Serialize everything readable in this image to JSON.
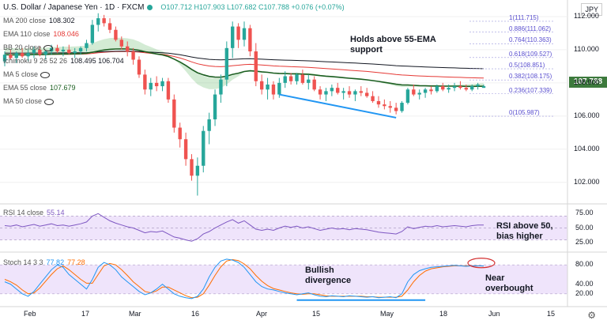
{
  "header": {
    "symbol": "U.S. Dollar / Japanese Yen · 1D · FXCM",
    "ohlc": "O107.712  H107.903  L107.682  C107.788  +0.076 (+0.07%)",
    "currency": "JPY"
  },
  "indicators": [
    {
      "label": "MA 200 close",
      "value": "108.302",
      "color": "#131722"
    },
    {
      "label": "EMA 110 close",
      "value": "108.046",
      "color": "#e53935"
    },
    {
      "label": "BB 20 close",
      "value": "",
      "color": "#555555"
    },
    {
      "label": "Ichimoku 9 26 52 26",
      "value": "108.495  106.704",
      "color": "#131722"
    },
    {
      "label": "MA 5 close",
      "value": "",
      "color": "#555555"
    },
    {
      "label": "EMA 55 close",
      "value": "107.679",
      "color": "#1b5e20"
    },
    {
      "label": "MA 50 close",
      "value": "",
      "color": "#888888"
    }
  ],
  "annotations": {
    "main": "Holds above 55-EMA support",
    "rsi": "RSI above 50, bias higher",
    "divergence": "Bullish divergence",
    "overbought": "Near overbought"
  },
  "rsi_label": "RSI 14 close",
  "rsi_value": "55.14",
  "stoch_label": "Stoch 14 3 3",
  "stoch_k": "77.82",
  "stoch_d": "77.28",
  "price_tag": "107.788",
  "fib_levels": [
    {
      "label": "1(111.715)",
      "value": 111.715
    },
    {
      "label": "0.886(111.062)",
      "value": 111.062
    },
    {
      "label": "0.764(110.363)",
      "value": 110.363
    },
    {
      "label": "0.618(109.527)",
      "value": 109.527
    },
    {
      "label": "0.5(108.851)",
      "value": 108.851
    },
    {
      "label": "0.382(108.175)",
      "value": 108.175
    },
    {
      "label": "0.236(107.339)",
      "value": 107.339
    },
    {
      "label": "0(105.987)",
      "value": 105.987
    }
  ],
  "colors": {
    "up": "#26a69a",
    "down": "#ef5350",
    "accent": "#2196f3",
    "rsi": "#7e57c2",
    "stoch_k": "#2196f3",
    "stoch_d": "#ff6d00"
  },
  "chart_data": {
    "type": "candlestick",
    "price_ticks": [
      "112.000",
      "110.000",
      "108.000",
      "106.000",
      "104.000",
      "102.000"
    ],
    "price_range": [
      100.7,
      113.0
    ],
    "x_ticks": [
      "Feb",
      "17",
      "Mar",
      "16",
      "Apr",
      "15",
      "May",
      "18",
      "Jun",
      "15"
    ],
    "rsi_ticks": [
      "75.00",
      "50.00",
      "25.00"
    ],
    "rsi_range": [
      15,
      85
    ],
    "stoch_ticks": [
      "80.00",
      "40.00",
      "20.00"
    ],
    "stoch_range": [
      0,
      100
    ],
    "candles": [
      [
        109.3,
        109.9,
        109.0,
        109.7
      ],
      [
        109.7,
        110.0,
        109.4,
        109.5
      ],
      [
        109.5,
        109.9,
        109.2,
        109.8
      ],
      [
        109.8,
        110.1,
        109.5,
        109.6
      ],
      [
        109.6,
        110.0,
        109.3,
        109.8
      ],
      [
        109.8,
        110.2,
        109.5,
        110.0
      ],
      [
        110.0,
        110.2,
        109.6,
        109.7
      ],
      [
        109.7,
        110.0,
        109.4,
        109.9
      ],
      [
        109.9,
        110.3,
        109.7,
        110.1
      ],
      [
        110.1,
        110.3,
        109.8,
        109.9
      ],
      [
        109.9,
        110.2,
        109.6,
        110.0
      ],
      [
        110.0,
        110.3,
        109.7,
        109.8
      ],
      [
        109.8,
        110.1,
        109.5,
        109.9
      ],
      [
        109.9,
        110.2,
        109.7,
        110.1
      ],
      [
        110.1,
        110.6,
        109.9,
        110.4
      ],
      [
        110.4,
        111.8,
        110.3,
        111.5
      ],
      [
        111.5,
        112.2,
        111.1,
        111.9
      ],
      [
        111.9,
        112.1,
        111.4,
        111.6
      ],
      [
        111.6,
        111.9,
        111.0,
        111.2
      ],
      [
        111.2,
        111.4,
        110.5,
        110.6
      ],
      [
        110.6,
        110.8,
        110.0,
        110.2
      ],
      [
        110.2,
        110.5,
        109.6,
        109.9
      ],
      [
        109.9,
        110.1,
        109.1,
        109.4
      ],
      [
        109.4,
        109.6,
        108.3,
        108.5
      ],
      [
        108.5,
        108.8,
        107.3,
        107.6
      ],
      [
        107.6,
        108.3,
        107.2,
        108.0
      ],
      [
        108.0,
        108.4,
        107.5,
        107.8
      ],
      [
        107.8,
        108.3,
        107.5,
        108.1
      ],
      [
        108.1,
        108.3,
        106.8,
        107.0
      ],
      [
        107.0,
        107.3,
        105.0,
        105.3
      ],
      [
        105.3,
        105.6,
        104.1,
        104.6
      ],
      [
        104.6,
        105.0,
        103.0,
        103.4
      ],
      [
        103.4,
        103.7,
        102.1,
        102.4
      ],
      [
        102.4,
        103.5,
        101.2,
        103.0
      ],
      [
        103.0,
        105.4,
        102.6,
        105.1
      ],
      [
        105.1,
        106.2,
        104.3,
        105.8
      ],
      [
        105.8,
        107.6,
        105.4,
        107.3
      ],
      [
        107.3,
        108.5,
        106.8,
        108.2
      ],
      [
        108.2,
        110.5,
        107.8,
        110.1
      ],
      [
        110.1,
        111.7,
        109.5,
        111.4
      ],
      [
        111.4,
        111.6,
        110.1,
        110.6
      ],
      [
        110.6,
        111.7,
        110.2,
        111.3
      ],
      [
        111.3,
        111.5,
        109.6,
        109.9
      ],
      [
        109.9,
        110.4,
        107.8,
        108.1
      ],
      [
        108.1,
        108.5,
        107.3,
        107.6
      ],
      [
        107.6,
        108.3,
        107.0,
        107.9
      ],
      [
        107.9,
        108.1,
        107.0,
        107.3
      ],
      [
        107.3,
        108.3,
        107.1,
        108.0
      ],
      [
        108.0,
        108.7,
        107.7,
        108.4
      ],
      [
        108.4,
        108.6,
        107.9,
        108.1
      ],
      [
        108.1,
        108.6,
        107.9,
        108.5
      ],
      [
        108.5,
        108.8,
        107.9,
        108.0
      ],
      [
        108.0,
        108.5,
        107.6,
        108.2
      ],
      [
        108.2,
        108.4,
        107.5,
        107.6
      ],
      [
        107.6,
        107.8,
        107.0,
        107.3
      ],
      [
        107.3,
        107.7,
        106.9,
        107.5
      ],
      [
        107.5,
        107.9,
        107.2,
        107.7
      ],
      [
        107.7,
        108.0,
        107.3,
        107.4
      ],
      [
        107.4,
        107.7,
        107.0,
        107.5
      ],
      [
        107.5,
        107.8,
        107.1,
        107.3
      ],
      [
        107.3,
        107.6,
        106.9,
        107.5
      ],
      [
        107.5,
        107.8,
        107.2,
        107.4
      ],
      [
        107.4,
        107.7,
        107.1,
        107.2
      ],
      [
        107.2,
        107.5,
        106.8,
        106.9
      ],
      [
        106.9,
        107.2,
        106.5,
        106.7
      ],
      [
        106.7,
        107.0,
        106.4,
        106.6
      ],
      [
        106.6,
        106.9,
        106.2,
        106.5
      ],
      [
        106.5,
        106.8,
        106.1,
        106.3
      ],
      [
        106.3,
        106.9,
        106.2,
        106.8
      ],
      [
        106.8,
        107.7,
        106.7,
        107.6
      ],
      [
        107.6,
        107.9,
        107.2,
        107.3
      ],
      [
        107.3,
        107.6,
        107.0,
        107.4
      ],
      [
        107.4,
        107.7,
        107.1,
        107.6
      ],
      [
        107.6,
        107.8,
        107.3,
        107.5
      ],
      [
        107.5,
        107.9,
        107.4,
        107.8
      ],
      [
        107.8,
        108.0,
        107.5,
        107.6
      ],
      [
        107.6,
        107.9,
        107.4,
        107.7
      ],
      [
        107.7,
        108.0,
        107.5,
        107.8
      ],
      [
        107.8,
        108.1,
        107.6,
        107.7
      ],
      [
        107.7,
        107.9,
        107.5,
        107.6
      ],
      [
        107.6,
        107.9,
        107.5,
        107.8
      ],
      [
        107.8,
        108.0,
        107.6,
        107.9
      ],
      [
        107.7,
        107.9,
        107.7,
        107.8
      ]
    ],
    "rsi": [
      54,
      53,
      55,
      52,
      54,
      56,
      53,
      55,
      57,
      54,
      55,
      53,
      55,
      57,
      60,
      70,
      74,
      68,
      62,
      58,
      55,
      52,
      50,
      46,
      42,
      44,
      43,
      45,
      40,
      35,
      33,
      30,
      28,
      32,
      40,
      44,
      50,
      55,
      60,
      64,
      58,
      62,
      55,
      48,
      46,
      48,
      46,
      50,
      53,
      51,
      53,
      50,
      52,
      49,
      46,
      48,
      50,
      48,
      49,
      47,
      49,
      48,
      47,
      45,
      43,
      42,
      41,
      40,
      44,
      52,
      49,
      51,
      53,
      52,
      54,
      52,
      53,
      54,
      53,
      52,
      54,
      55,
      55
    ],
    "stoch_k": [
      45,
      40,
      30,
      20,
      15,
      25,
      40,
      55,
      70,
      80,
      75,
      60,
      50,
      40,
      30,
      50,
      75,
      85,
      80,
      70,
      55,
      45,
      35,
      25,
      18,
      22,
      30,
      40,
      30,
      20,
      15,
      12,
      10,
      15,
      30,
      55,
      75,
      88,
      92,
      90,
      85,
      75,
      60,
      45,
      35,
      30,
      28,
      25,
      22,
      20,
      18,
      20,
      22,
      18,
      15,
      14,
      16,
      15,
      14,
      16,
      15,
      14,
      13,
      14,
      12,
      13,
      14,
      12,
      20,
      45,
      60,
      68,
      72,
      75,
      76,
      77,
      78,
      79,
      78,
      77,
      78,
      78,
      77.8
    ],
    "stoch_d": [
      50,
      45,
      38,
      28,
      20,
      22,
      32,
      46,
      60,
      72,
      78,
      70,
      60,
      50,
      42,
      42,
      60,
      78,
      83,
      80,
      70,
      58,
      45,
      35,
      25,
      22,
      26,
      34,
      34,
      28,
      22,
      16,
      12,
      13,
      20,
      38,
      58,
      76,
      88,
      91,
      89,
      82,
      72,
      58,
      46,
      37,
      31,
      28,
      25,
      22,
      20,
      19,
      20,
      20,
      18,
      16,
      15,
      15,
      15,
      15,
      15,
      15,
      14,
      14,
      13,
      13,
      13,
      13,
      15,
      28,
      45,
      58,
      67,
      72,
      74,
      76,
      77,
      78,
      78,
      78,
      78,
      78,
      77.3
    ]
  }
}
